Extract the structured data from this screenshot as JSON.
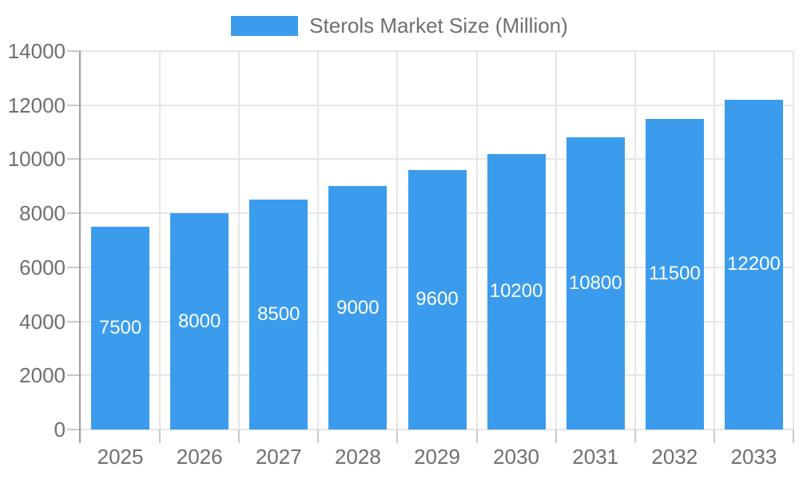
{
  "legend": {
    "label": "Sterols Market Size (Million)"
  },
  "colors": {
    "bar": "#3b9cee",
    "bar_label": "#ffffff",
    "grid": "#e6e6e6",
    "axis_line": "#9e9e9e",
    "tick": "#c9c9c9",
    "text": "#6f6f6f",
    "background": "#ffffff"
  },
  "chart_data": {
    "type": "bar",
    "title": "",
    "xlabel": "",
    "ylabel": "",
    "series_name": "Sterols Market Size (Million)",
    "categories": [
      "2025",
      "2026",
      "2027",
      "2028",
      "2029",
      "2030",
      "2031",
      "2032",
      "2033"
    ],
    "values": [
      7500,
      8000,
      8500,
      9000,
      9600,
      10200,
      10800,
      11500,
      12200
    ],
    "ylim": [
      0,
      14000
    ],
    "yticks": [
      0,
      2000,
      4000,
      6000,
      8000,
      10000,
      12000,
      14000
    ],
    "grid": true,
    "vertical_grid": true,
    "legend_position": "top",
    "bar_labels_visible": true,
    "bar_label_position": "center"
  }
}
